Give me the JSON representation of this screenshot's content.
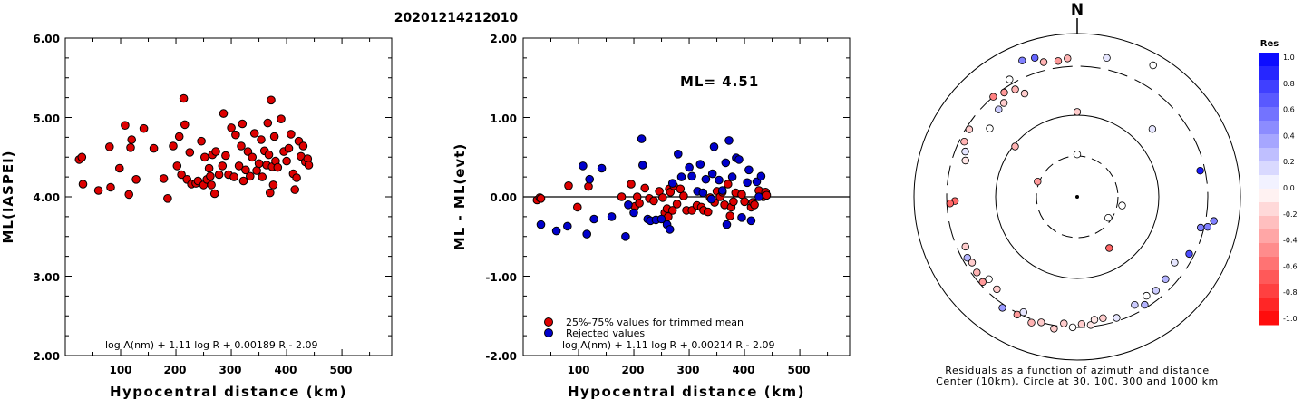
{
  "title": "20201214212010",
  "chart_data": [
    {
      "type": "scatter",
      "ylabel": "ML(IASPEI)",
      "xlabel": "Hypocentral distance (km)",
      "xlim": [
        0,
        590
      ],
      "ylim": [
        2.0,
        6.0
      ],
      "xticks": [
        "100",
        "200",
        "300",
        "400",
        "500"
      ],
      "yticks": [
        "2.00",
        "3.00",
        "4.00",
        "5.00",
        "6.00"
      ],
      "formula": "log A(nm) + 1.11 log R + 0.00189 R - 2.09",
      "series": [
        {
          "color": "#dd0000",
          "points": [
            [
              25,
              4.47
            ],
            [
              30,
              4.5
            ],
            [
              32,
              4.16
            ],
            [
              60,
              4.08
            ],
            [
              80,
              4.63
            ],
            [
              82,
              4.12
            ],
            [
              98,
              4.36
            ],
            [
              108,
              4.9
            ],
            [
              115,
              4.03
            ],
            [
              118,
              4.62
            ],
            [
              120,
              4.72
            ],
            [
              128,
              4.22
            ],
            [
              142,
              4.86
            ],
            [
              160,
              4.61
            ],
            [
              178,
              4.23
            ],
            [
              185,
              3.98
            ],
            [
              195,
              4.64
            ],
            [
              202,
              4.39
            ],
            [
              206,
              4.76
            ],
            [
              210,
              4.28
            ],
            [
              214,
              5.24
            ],
            [
              216,
              4.91
            ],
            [
              220,
              4.22
            ],
            [
              225,
              4.56
            ],
            [
              228,
              4.16
            ],
            [
              236,
              4.17
            ],
            [
              240,
              4.2
            ],
            [
              246,
              4.7
            ],
            [
              250,
              4.15
            ],
            [
              252,
              4.5
            ],
            [
              256,
              4.22
            ],
            [
              260,
              4.36
            ],
            [
              262,
              4.26
            ],
            [
              264,
              4.15
            ],
            [
              266,
              4.53
            ],
            [
              270,
              4.04
            ],
            [
              272,
              4.57
            ],
            [
              278,
              4.28
            ],
            [
              284,
              4.39
            ],
            [
              286,
              5.05
            ],
            [
              290,
              4.52
            ],
            [
              295,
              4.28
            ],
            [
              300,
              4.87
            ],
            [
              305,
              4.25
            ],
            [
              308,
              4.78
            ],
            [
              314,
              4.39
            ],
            [
              318,
              4.64
            ],
            [
              320,
              4.92
            ],
            [
              322,
              4.2
            ],
            [
              326,
              4.34
            ],
            [
              330,
              4.57
            ],
            [
              334,
              4.26
            ],
            [
              338,
              4.5
            ],
            [
              342,
              4.8
            ],
            [
              346,
              4.33
            ],
            [
              350,
              4.42
            ],
            [
              354,
              4.72
            ],
            [
              356,
              4.25
            ],
            [
              360,
              4.58
            ],
            [
              364,
              4.4
            ],
            [
              366,
              4.93
            ],
            [
              368,
              4.53
            ],
            [
              370,
              4.05
            ],
            [
              372,
              5.22
            ],
            [
              374,
              4.38
            ],
            [
              376,
              4.15
            ],
            [
              378,
              4.76
            ],
            [
              380,
              4.45
            ],
            [
              384,
              4.37
            ],
            [
              390,
              4.98
            ],
            [
              395,
              4.57
            ],
            [
              400,
              4.45
            ],
            [
              404,
              4.61
            ],
            [
              408,
              4.79
            ],
            [
              412,
              4.29
            ],
            [
              415,
              4.09
            ],
            [
              418,
              4.24
            ],
            [
              422,
              4.7
            ],
            [
              426,
              4.51
            ],
            [
              430,
              4.64
            ],
            [
              434,
              4.44
            ],
            [
              438,
              4.48
            ],
            [
              440,
              4.4
            ]
          ]
        }
      ]
    },
    {
      "type": "scatter",
      "ylabel": "ML - ML(evt)",
      "xlabel": "Hypocentral distance (km)",
      "xlim": [
        0,
        590
      ],
      "ylim": [
        -2.0,
        2.0
      ],
      "xticks": [
        "100",
        "200",
        "300",
        "400",
        "500"
      ],
      "yticks": [
        "-2.00",
        "-1.00",
        "0.00",
        "1.00",
        "2.00"
      ],
      "annotation": "ML= 4.51",
      "formula": "log A(nm) + 1.11 log R + 0.00214 R - 2.09",
      "legend_position": "bottom-left",
      "series": [
        {
          "name": "25%-75% values for trimmed mean",
          "color": "#dd0000",
          "points": [
            [
              25,
              -0.04
            ],
            [
              30,
              -0.01
            ],
            [
              32,
              -0.02
            ],
            [
              82,
              0.14
            ],
            [
              98,
              -0.13
            ],
            [
              118,
              0.13
            ],
            [
              178,
              0.0
            ],
            [
              195,
              0.16
            ],
            [
              202,
              -0.12
            ],
            [
              206,
              0.0
            ],
            [
              210,
              -0.08
            ],
            [
              220,
              0.11
            ],
            [
              228,
              -0.02
            ],
            [
              236,
              -0.05
            ],
            [
              246,
              0.07
            ],
            [
              252,
              -0.01
            ],
            [
              256,
              -0.2
            ],
            [
              260,
              -0.15
            ],
            [
              262,
              -0.25
            ],
            [
              264,
              0.1
            ],
            [
              266,
              0.06
            ],
            [
              270,
              -0.17
            ],
            [
              272,
              0.14
            ],
            [
              278,
              -0.09
            ],
            [
              284,
              0.1
            ],
            [
              290,
              0.01
            ],
            [
              295,
              -0.17
            ],
            [
              305,
              -0.17
            ],
            [
              314,
              -0.11
            ],
            [
              322,
              -0.13
            ],
            [
              326,
              -0.17
            ],
            [
              334,
              -0.19
            ],
            [
              338,
              -0.01
            ],
            [
              346,
              -0.07
            ],
            [
              350,
              0.07
            ],
            [
              356,
              0.0
            ],
            [
              360,
              0.06
            ],
            [
              364,
              -0.1
            ],
            [
              370,
              0.16
            ],
            [
              374,
              -0.24
            ],
            [
              376,
              -0.13
            ],
            [
              380,
              -0.06
            ],
            [
              384,
              0.05
            ],
            [
              395,
              0.03
            ],
            [
              400,
              -0.06
            ],
            [
              412,
              -0.13
            ],
            [
              415,
              -0.07
            ],
            [
              418,
              -0.1
            ],
            [
              426,
              0.08
            ],
            [
              434,
              0.0
            ],
            [
              438,
              0.06
            ],
            [
              440,
              0.02
            ]
          ]
        },
        {
          "name": "Rejected values",
          "color": "#0000cc",
          "points": [
            [
              32,
              -0.35
            ],
            [
              60,
              -0.43
            ],
            [
              80,
              -0.37
            ],
            [
              108,
              0.39
            ],
            [
              115,
              -0.47
            ],
            [
              120,
              0.22
            ],
            [
              128,
              -0.28
            ],
            [
              142,
              0.36
            ],
            [
              160,
              -0.25
            ],
            [
              185,
              -0.5
            ],
            [
              190,
              -0.1
            ],
            [
              200,
              -0.2
            ],
            [
              214,
              0.73
            ],
            [
              216,
              0.4
            ],
            [
              225,
              -0.28
            ],
            [
              230,
              -0.3
            ],
            [
              240,
              -0.29
            ],
            [
              250,
              -0.28
            ],
            [
              260,
              -0.35
            ],
            [
              265,
              -0.41
            ],
            [
              270,
              0.17
            ],
            [
              280,
              0.54
            ],
            [
              286,
              0.25
            ],
            [
              300,
              0.37
            ],
            [
              305,
              0.26
            ],
            [
              315,
              0.07
            ],
            [
              320,
              0.41
            ],
            [
              325,
              0.05
            ],
            [
              330,
              0.22
            ],
            [
              340,
              -0.03
            ],
            [
              342,
              0.29
            ],
            [
              345,
              0.63
            ],
            [
              354,
              0.21
            ],
            [
              360,
              0.08
            ],
            [
              366,
              0.43
            ],
            [
              368,
              -0.35
            ],
            [
              372,
              0.71
            ],
            [
              378,
              0.25
            ],
            [
              385,
              0.49
            ],
            [
              390,
              0.47
            ],
            [
              395,
              -0.26
            ],
            [
              405,
              0.18
            ],
            [
              408,
              0.34
            ],
            [
              412,
              -0.3
            ],
            [
              422,
              0.19
            ],
            [
              426,
              0.0
            ],
            [
              430,
              0.26
            ]
          ]
        }
      ]
    },
    {
      "type": "scatter",
      "label": "N",
      "caption_1": "Residuals as a function of azimuth and distance",
      "caption_2": "Center (10km), Circle at 30, 100, 300 and 1000 km",
      "colorbar": {
        "title": "Res",
        "ticks": [
          "1.0",
          "0.8",
          "0.6",
          "0.4",
          "0.2",
          "0.0",
          "-0.2",
          "-0.4",
          "-0.6",
          "-0.8",
          "-1.0"
        ],
        "positive_color": "#0000ff",
        "negative_color": "#ff0000"
      },
      "polar_points": [
        {
          "az": 338,
          "r": 0.9,
          "res": 0.5
        },
        {
          "az": 343,
          "r": 0.89,
          "res": 0.6
        },
        {
          "az": 346,
          "r": 0.85,
          "res": -0.3
        },
        {
          "az": 352,
          "r": 0.84,
          "res": -0.4
        },
        {
          "az": 356,
          "r": 0.85,
          "res": -0.3
        },
        {
          "az": 12,
          "r": 0.87,
          "res": 0.1
        },
        {
          "az": 30,
          "r": 0.93,
          "res": 0.0
        },
        {
          "az": 330,
          "r": 0.83,
          "res": 0.0
        },
        {
          "az": 325,
          "r": 0.78,
          "res": -0.4
        },
        {
          "az": 320,
          "r": 0.8,
          "res": -0.5
        },
        {
          "az": 322,
          "r": 0.73,
          "res": -0.2
        },
        {
          "az": 318,
          "r": 0.72,
          "res": 0.2
        },
        {
          "az": 330,
          "r": 0.76,
          "res": -0.3
        },
        {
          "az": 333,
          "r": 0.71,
          "res": -0.2
        },
        {
          "az": 308,
          "r": 0.68,
          "res": 0.0
        },
        {
          "az": 302,
          "r": 0.78,
          "res": -0.2
        },
        {
          "az": 296,
          "r": 0.77,
          "res": -0.3
        },
        {
          "az": 292,
          "r": 0.74,
          "res": 0.1
        },
        {
          "az": 288,
          "r": 0.72,
          "res": -0.1
        },
        {
          "az": 268,
          "r": 0.75,
          "res": -0.6
        },
        {
          "az": 267,
          "r": 0.78,
          "res": -0.6
        },
        {
          "az": 246,
          "r": 0.75,
          "res": -0.2
        },
        {
          "az": 241,
          "r": 0.77,
          "res": 0.3
        },
        {
          "az": 238,
          "r": 0.76,
          "res": -0.2
        },
        {
          "az": 233,
          "r": 0.77,
          "res": -0.3
        },
        {
          "az": 228,
          "r": 0.78,
          "res": -0.4
        },
        {
          "az": 227,
          "r": 0.74,
          "res": 0.0
        },
        {
          "az": 221,
          "r": 0.75,
          "res": -0.2
        },
        {
          "az": 214,
          "r": 0.82,
          "res": 0.4
        },
        {
          "az": 207,
          "r": 0.81,
          "res": -0.4
        },
        {
          "az": 205,
          "r": 0.78,
          "res": 0.1
        },
        {
          "az": 200,
          "r": 0.82,
          "res": -0.3
        },
        {
          "az": 196,
          "r": 0.8,
          "res": -0.2
        },
        {
          "az": 190,
          "r": 0.82,
          "res": -0.2
        },
        {
          "az": 186,
          "r": 0.78,
          "res": -0.2
        },
        {
          "az": 182,
          "r": 0.8,
          "res": 0.0
        },
        {
          "az": 178,
          "r": 0.78,
          "res": -0.2
        },
        {
          "az": 174,
          "r": 0.79,
          "res": -0.1
        },
        {
          "az": 172,
          "r": 0.76,
          "res": -0.1
        },
        {
          "az": 168,
          "r": 0.76,
          "res": -0.2
        },
        {
          "az": 162,
          "r": 0.78,
          "res": 0.1
        },
        {
          "az": 152,
          "r": 0.75,
          "res": 0.2
        },
        {
          "az": 148,
          "r": 0.78,
          "res": 0.3
        },
        {
          "az": 145,
          "r": 0.74,
          "res": 0.0
        },
        {
          "az": 140,
          "r": 0.75,
          "res": 0.2
        },
        {
          "az": 133,
          "r": 0.74,
          "res": 0.3
        },
        {
          "az": 124,
          "r": 0.72,
          "res": 0.1
        },
        {
          "az": 117,
          "r": 0.77,
          "res": 0.7
        },
        {
          "az": 104,
          "r": 0.78,
          "res": 0.5
        },
        {
          "az": 103,
          "r": 0.82,
          "res": 0.5
        },
        {
          "az": 100,
          "r": 0.85,
          "res": 0.5
        },
        {
          "az": 78,
          "r": 0.77,
          "res": 0.9
        },
        {
          "az": 48,
          "r": 0.62,
          "res": 0.1
        },
        {
          "az": 148,
          "r": 0.37,
          "res": -0.6
        },
        {
          "az": 0,
          "r": 0.52,
          "res": -0.2
        },
        {
          "az": 0,
          "r": 0.26,
          "res": 0.0
        },
        {
          "az": 291,
          "r": 0.26,
          "res": -0.4
        },
        {
          "az": 101,
          "r": 0.28,
          "res": 0.0
        },
        {
          "az": 124,
          "r": 0.23,
          "res": 0.0
        },
        {
          "az": 309,
          "r": 0.49,
          "res": -0.3
        }
      ]
    }
  ]
}
